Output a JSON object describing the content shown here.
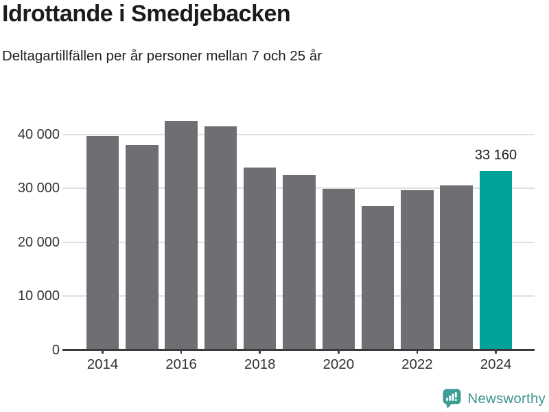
{
  "title": "Idrottande i Smedjebacken",
  "subtitle": "Deltagartillfällen per år personer mellan 7 och 25 år",
  "chart_data": {
    "type": "bar",
    "title": "Idrottande i Smedjebacken",
    "subtitle": "Deltagartillfällen per år personer mellan 7 och 25 år",
    "categories": [
      "2014",
      "2015",
      "2016",
      "2017",
      "2018",
      "2019",
      "2020",
      "2021",
      "2022",
      "2023",
      "2024"
    ],
    "values": [
      39700,
      38000,
      42500,
      41500,
      33900,
      32400,
      29900,
      26700,
      29700,
      30500,
      33160
    ],
    "highlight_index": 10,
    "value_label": {
      "index": 10,
      "text": "33 160"
    },
    "yticks": [
      {
        "value": 0,
        "label": "0"
      },
      {
        "value": 10000,
        "label": "10 000"
      },
      {
        "value": 20000,
        "label": "20 000"
      },
      {
        "value": 30000,
        "label": "30 000"
      },
      {
        "value": 40000,
        "label": "40 000"
      }
    ],
    "xtick_labels": [
      "2014",
      "2016",
      "2018",
      "2020",
      "2022",
      "2024"
    ],
    "ylim": [
      0,
      43250
    ],
    "grid": true,
    "legend": "none",
    "colors": {
      "bar": "#6e6e73",
      "highlight": "#00a29a",
      "gridline": "#e0e0e0",
      "axis": "#3a3a3a",
      "value_text": "#1d1d1d",
      "tick_text": "#333333"
    }
  },
  "footer": {
    "brand": "Newsworthy",
    "brand_color": "#3e968f",
    "icon": "newsworthy-logo-icon",
    "icon_color": "#3c9e94"
  }
}
